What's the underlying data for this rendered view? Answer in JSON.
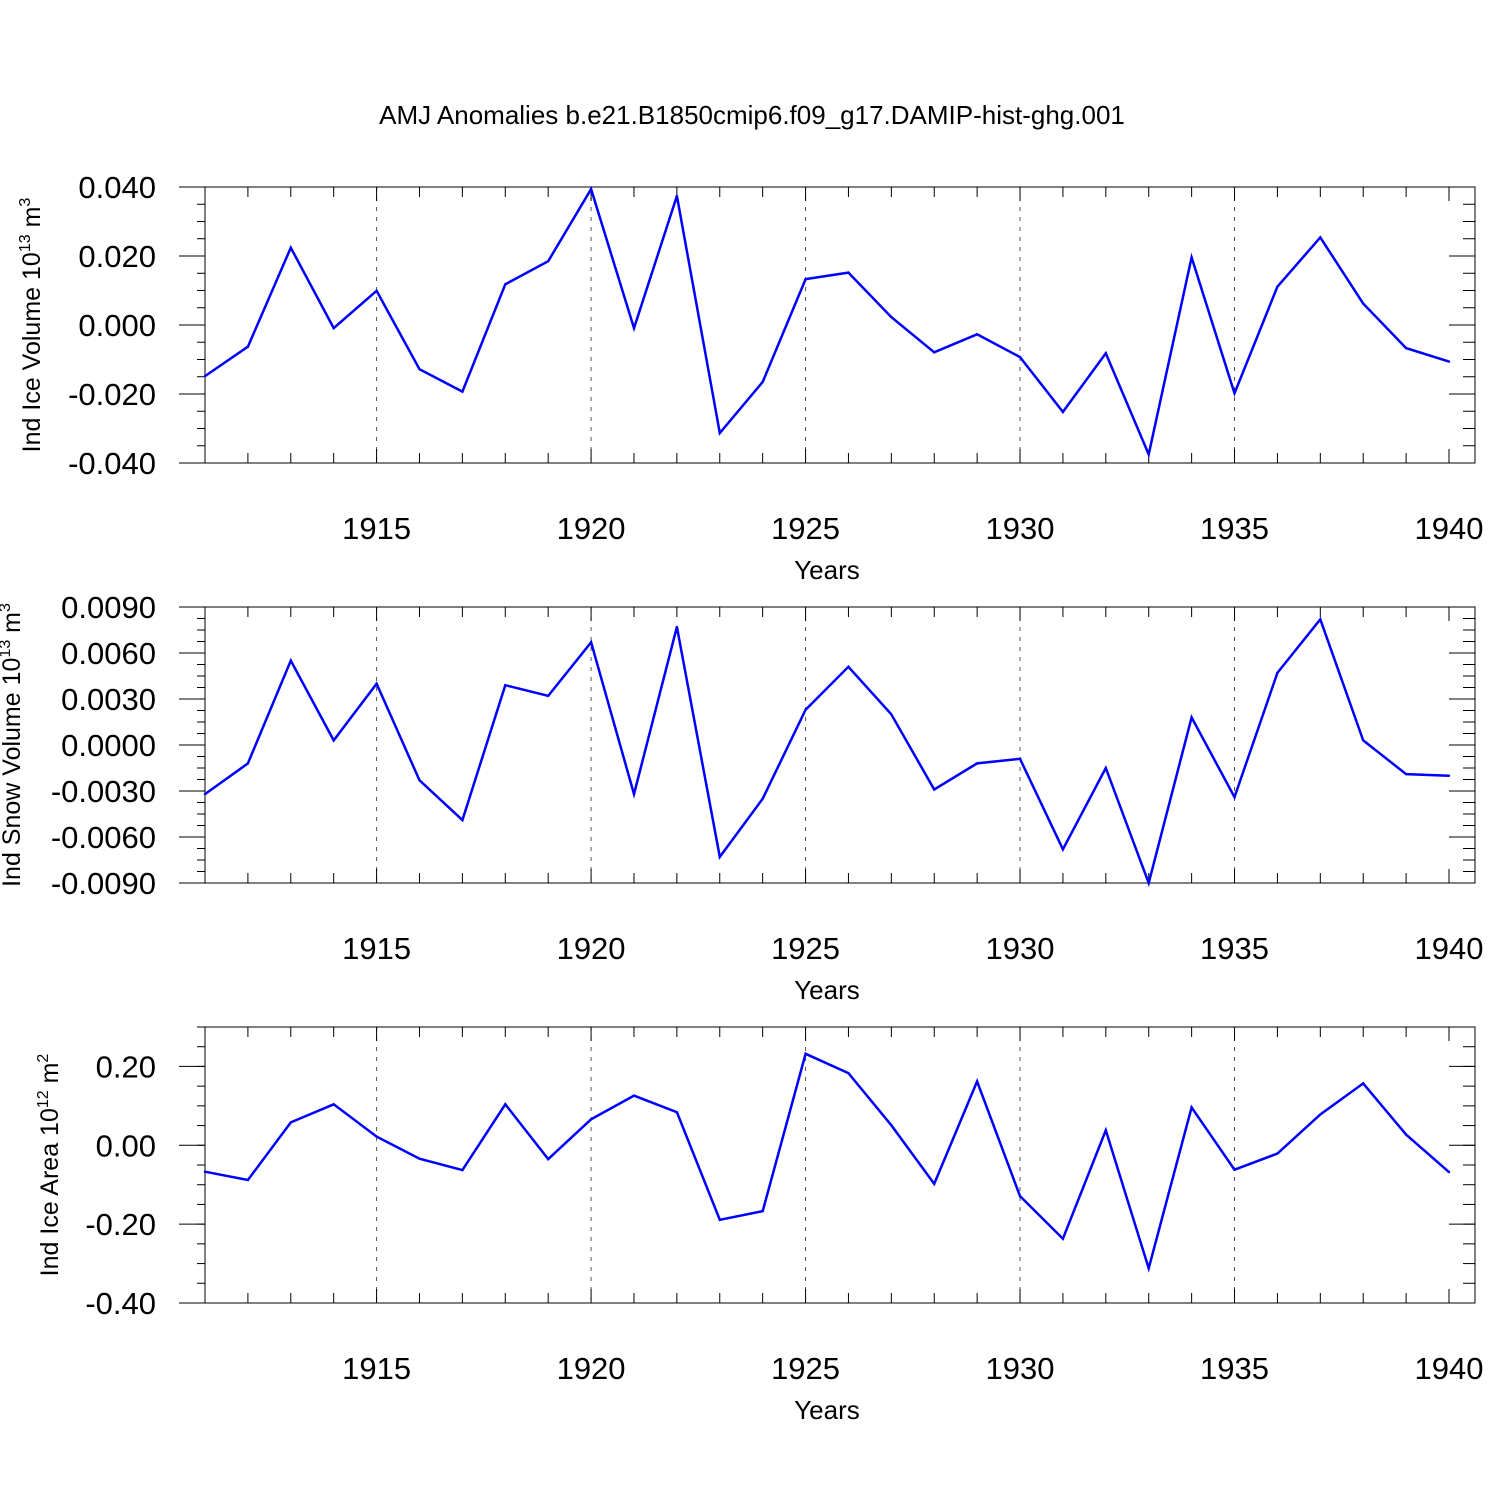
{
  "title": "AMJ Anomalies b.e21.B1850cmip6.f09_g17.DAMIP-hist-ghg.001",
  "colors": {
    "line": "#0000ff",
    "axis": "#000000",
    "grid": "#555555"
  },
  "chart_data": [
    {
      "type": "line",
      "ylabel_main": "Ind Ice Volume 10",
      "ylabel_exp": "13",
      "ylabel_unit": " m",
      "ylabel_unit_exp": "3",
      "xlabel": "Years",
      "xlim": [
        1911,
        1940
      ],
      "ylim": [
        -0.04,
        0.04
      ],
      "yticks": [
        "0.040",
        "0.020",
        "0.000",
        "-0.020",
        "-0.040"
      ],
      "ytick_values": [
        0.04,
        0.02,
        0.0,
        -0.02,
        -0.04
      ],
      "xticks": [
        "1915",
        "1920",
        "1925",
        "1930",
        "1935",
        "1940"
      ],
      "xtick_values": [
        1915,
        1920,
        1925,
        1930,
        1935,
        1940
      ],
      "x": [
        1911,
        1912,
        1913,
        1914,
        1915,
        1916,
        1917,
        1918,
        1919,
        1920,
        1921,
        1922,
        1923,
        1924,
        1925,
        1926,
        1927,
        1928,
        1929,
        1930,
        1931,
        1932,
        1933,
        1934,
        1935,
        1936,
        1937,
        1938,
        1939,
        1940
      ],
      "values": [
        -0.0148,
        -0.0063,
        0.0224,
        -0.0009,
        0.0099,
        -0.0128,
        -0.0193,
        0.0118,
        0.0185,
        0.0394,
        -0.0009,
        0.0374,
        -0.0313,
        -0.0165,
        0.0133,
        0.0152,
        0.0023,
        -0.0079,
        -0.0027,
        -0.0093,
        -0.0252,
        -0.0082,
        -0.0375,
        0.0196,
        -0.0198,
        0.0111,
        0.0254,
        0.0062,
        -0.0067,
        -0.0106
      ]
    },
    {
      "type": "line",
      "ylabel_main": "Ind Snow Volume 10",
      "ylabel_exp": "13",
      "ylabel_unit": " m",
      "ylabel_unit_exp": "3",
      "xlabel": "Years",
      "xlim": [
        1911,
        1940
      ],
      "ylim": [
        -0.009,
        0.009
      ],
      "yticks": [
        "0.0090",
        "0.0060",
        "0.0030",
        "0.0000",
        "-0.0030",
        "-0.0060",
        "-0.0090"
      ],
      "ytick_values": [
        0.009,
        0.006,
        0.003,
        0.0,
        -0.003,
        -0.006,
        -0.009
      ],
      "xticks": [
        "1915",
        "1920",
        "1925",
        "1930",
        "1935",
        "1940"
      ],
      "xtick_values": [
        1915,
        1920,
        1925,
        1930,
        1935,
        1940
      ],
      "x": [
        1911,
        1912,
        1913,
        1914,
        1915,
        1916,
        1917,
        1918,
        1919,
        1920,
        1921,
        1922,
        1923,
        1924,
        1925,
        1926,
        1927,
        1928,
        1929,
        1930,
        1931,
        1932,
        1933,
        1934,
        1935,
        1936,
        1937,
        1938,
        1939,
        1940
      ],
      "values": [
        -0.0032,
        -0.0012,
        0.0055,
        0.0003,
        0.004,
        -0.0023,
        -0.0049,
        0.0039,
        0.0032,
        0.0067,
        -0.0032,
        0.0077,
        -0.0073,
        -0.0035,
        0.0023,
        0.0051,
        0.002,
        -0.0029,
        -0.0012,
        -0.0009,
        -0.0068,
        -0.0015,
        -0.009,
        0.0018,
        -0.0034,
        0.0047,
        0.0082,
        0.0003,
        -0.0019,
        -0.002
      ]
    },
    {
      "type": "line",
      "ylabel_main": "Ind Ice Area 10",
      "ylabel_exp": "12",
      "ylabel_unit": " m",
      "ylabel_unit_exp": "2",
      "xlabel": "Years",
      "xlim": [
        1911,
        1940
      ],
      "ylim": [
        -0.4,
        0.3
      ],
      "yticks": [
        "0.20",
        "0.00",
        "-0.20",
        "-0.40"
      ],
      "ytick_values": [
        0.2,
        0.0,
        -0.2,
        -0.4
      ],
      "xticks": [
        "1915",
        "1920",
        "1925",
        "1930",
        "1935",
        "1940"
      ],
      "xtick_values": [
        1915,
        1920,
        1925,
        1930,
        1935,
        1940
      ],
      "x": [
        1911,
        1912,
        1913,
        1914,
        1915,
        1916,
        1917,
        1918,
        1919,
        1920,
        1921,
        1922,
        1923,
        1924,
        1925,
        1926,
        1927,
        1928,
        1929,
        1930,
        1931,
        1932,
        1933,
        1934,
        1935,
        1936,
        1937,
        1938,
        1939,
        1940
      ],
      "values": [
        -0.067,
        -0.088,
        0.058,
        0.104,
        0.022,
        -0.034,
        -0.063,
        0.104,
        -0.035,
        0.066,
        0.126,
        0.084,
        -0.189,
        -0.167,
        0.232,
        0.183,
        0.051,
        -0.098,
        0.162,
        -0.129,
        -0.237,
        0.038,
        -0.312,
        0.096,
        -0.062,
        -0.021,
        0.078,
        0.157,
        0.027,
        -0.068
      ]
    }
  ]
}
